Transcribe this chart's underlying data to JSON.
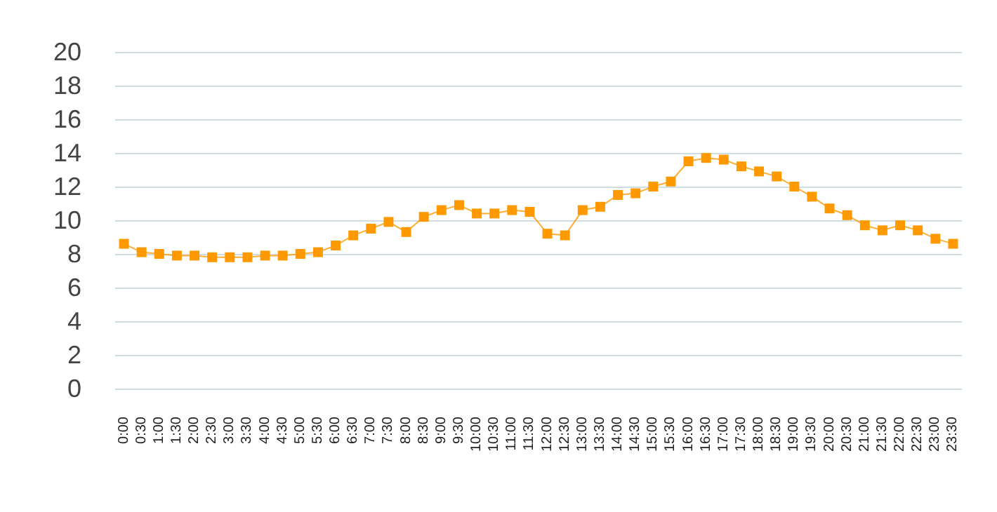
{
  "chart_data": {
    "type": "line",
    "categories": [
      "0:00",
      "0:30",
      "1:00",
      "1:30",
      "2:00",
      "2:30",
      "3:00",
      "3:30",
      "4:00",
      "4:30",
      "5:00",
      "5:30",
      "6:00",
      "6:30",
      "7:00",
      "7:30",
      "8:00",
      "8:30",
      "9:00",
      "9:30",
      "10:00",
      "10:30",
      "11:00",
      "11:30",
      "12:00",
      "12:30",
      "13:00",
      "13:30",
      "14:00",
      "14:30",
      "15:00",
      "15:30",
      "16:00",
      "16:30",
      "17:00",
      "17:30",
      "18:00",
      "18:30",
      "19:00",
      "19:30",
      "20:00",
      "20:30",
      "21:00",
      "21:30",
      "22:00",
      "22:30",
      "23:00",
      "23:30"
    ],
    "series": [
      {
        "color": "#ff9900",
        "values": [
          8.6,
          8.1,
          8.0,
          7.9,
          7.9,
          7.8,
          7.8,
          7.8,
          7.9,
          7.9,
          8.0,
          8.1,
          8.5,
          9.1,
          9.5,
          9.9,
          9.3,
          10.2,
          10.6,
          10.9,
          10.4,
          10.4,
          10.6,
          10.5,
          9.2,
          9.1,
          10.6,
          10.8,
          11.5,
          11.6,
          12.0,
          12.3,
          13.5,
          13.7,
          13.6,
          13.2,
          12.9,
          12.6,
          12.0,
          11.4,
          10.7,
          10.3,
          9.7,
          9.4,
          9.7,
          9.4,
          8.9,
          8.6
        ]
      }
    ],
    "ylim": [
      0,
      20
    ],
    "yticks": [
      0,
      2,
      4,
      6,
      8,
      10,
      12,
      14,
      16,
      18,
      20
    ],
    "grid": "y",
    "marker": "square",
    "line_style": "solid"
  }
}
